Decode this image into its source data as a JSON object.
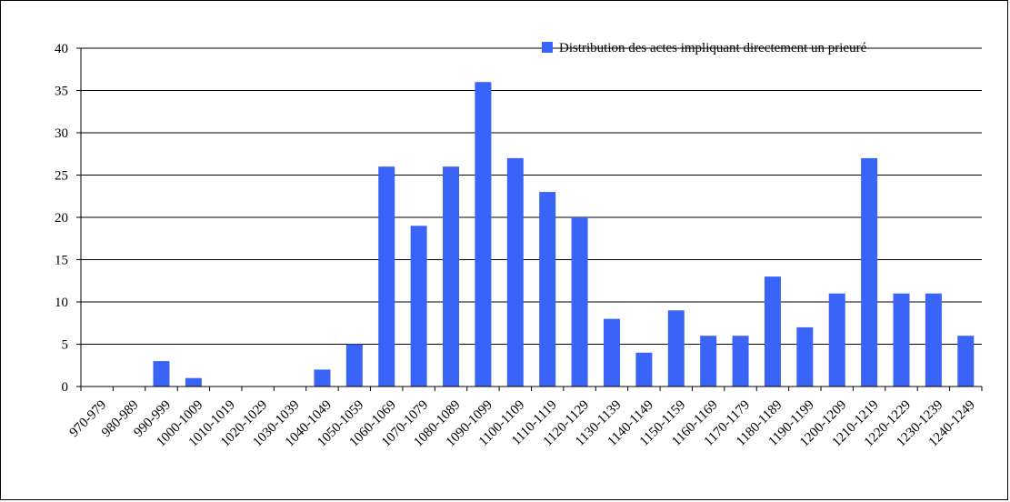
{
  "chart_data": {
    "type": "bar",
    "categories": [
      "970-979",
      "980-989",
      "990-999",
      "1000-1009",
      "1010-1019",
      "1020-1029",
      "1030-1039",
      "1040-1049",
      "1050-1059",
      "1060-1069",
      "1070-1079",
      "1080-1089",
      "1090-1099",
      "1100-1109",
      "1110-1119",
      "1120-1129",
      "1130-1139",
      "1140-1149",
      "1150-1159",
      "1160-1169",
      "1170-1179",
      "1180-1189",
      "1190-1199",
      "1200-1209",
      "1210-1219",
      "1220-1229",
      "1230-1239",
      "1240-1249"
    ],
    "series": [
      {
        "name": "Distribution des actes impliquant directement un prieuré",
        "values": [
          0,
          0,
          3,
          1,
          0,
          0,
          0,
          2,
          5,
          26,
          19,
          26,
          36,
          27,
          23,
          20,
          8,
          4,
          9,
          6,
          6,
          13,
          7,
          11,
          27,
          11,
          11,
          6
        ]
      }
    ],
    "ylim": [
      0,
      40
    ],
    "yticks": [
      0,
      5,
      10,
      15,
      20,
      25,
      30,
      35,
      40
    ],
    "grid": "horizontal",
    "legend_position": "top-right",
    "bar_color": "#3a63f8"
  }
}
